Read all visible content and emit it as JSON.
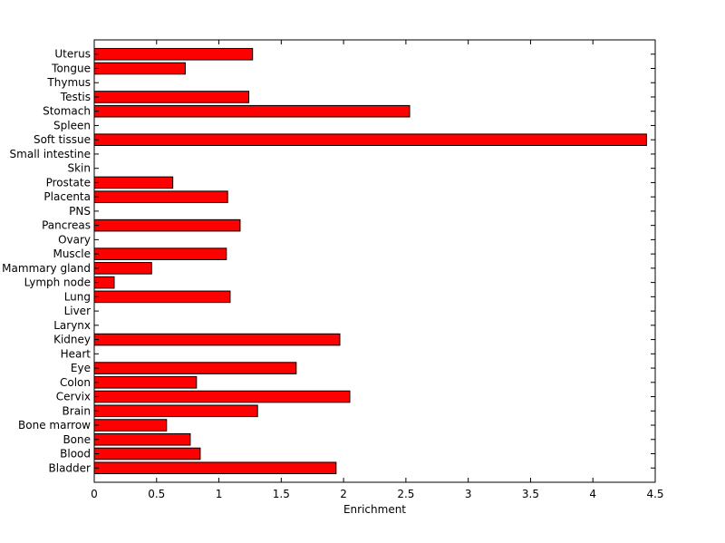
{
  "chart_data": {
    "type": "bar",
    "orientation": "horizontal",
    "title": "",
    "xlabel": "Enrichment",
    "ylabel": "",
    "xlim": [
      0,
      4.5
    ],
    "xticks": [
      0,
      0.5,
      1,
      1.5,
      2,
      2.5,
      3,
      3.5,
      4,
      4.5
    ],
    "xtick_labels": [
      "0",
      "0.5",
      "1",
      "1.5",
      "2",
      "2.5",
      "3",
      "3.5",
      "4",
      "4.5"
    ],
    "grid": false,
    "bar_color": "#ff0000",
    "bar_edge_color": "#000000",
    "categories": [
      "Bladder",
      "Blood",
      "Bone",
      "Bone marrow",
      "Brain",
      "Cervix",
      "Colon",
      "Eye",
      "Heart",
      "Kidney",
      "Larynx",
      "Liver",
      "Lung",
      "Lymph node",
      "Mammary gland",
      "Muscle",
      "Ovary",
      "Pancreas",
      "PNS",
      "Placenta",
      "Prostate",
      "Skin",
      "Small intestine",
      "Soft tissue",
      "Spleen",
      "Stomach",
      "Testis",
      "Thymus",
      "Tongue",
      "Uterus"
    ],
    "values": [
      1.94,
      0.85,
      0.77,
      0.58,
      1.31,
      2.05,
      0.82,
      1.62,
      0,
      1.97,
      0,
      0,
      1.09,
      0.16,
      0.46,
      1.06,
      0,
      1.17,
      0,
      1.07,
      0.63,
      0,
      0,
      4.43,
      0,
      2.53,
      1.24,
      0,
      0.73,
      1.27
    ]
  }
}
